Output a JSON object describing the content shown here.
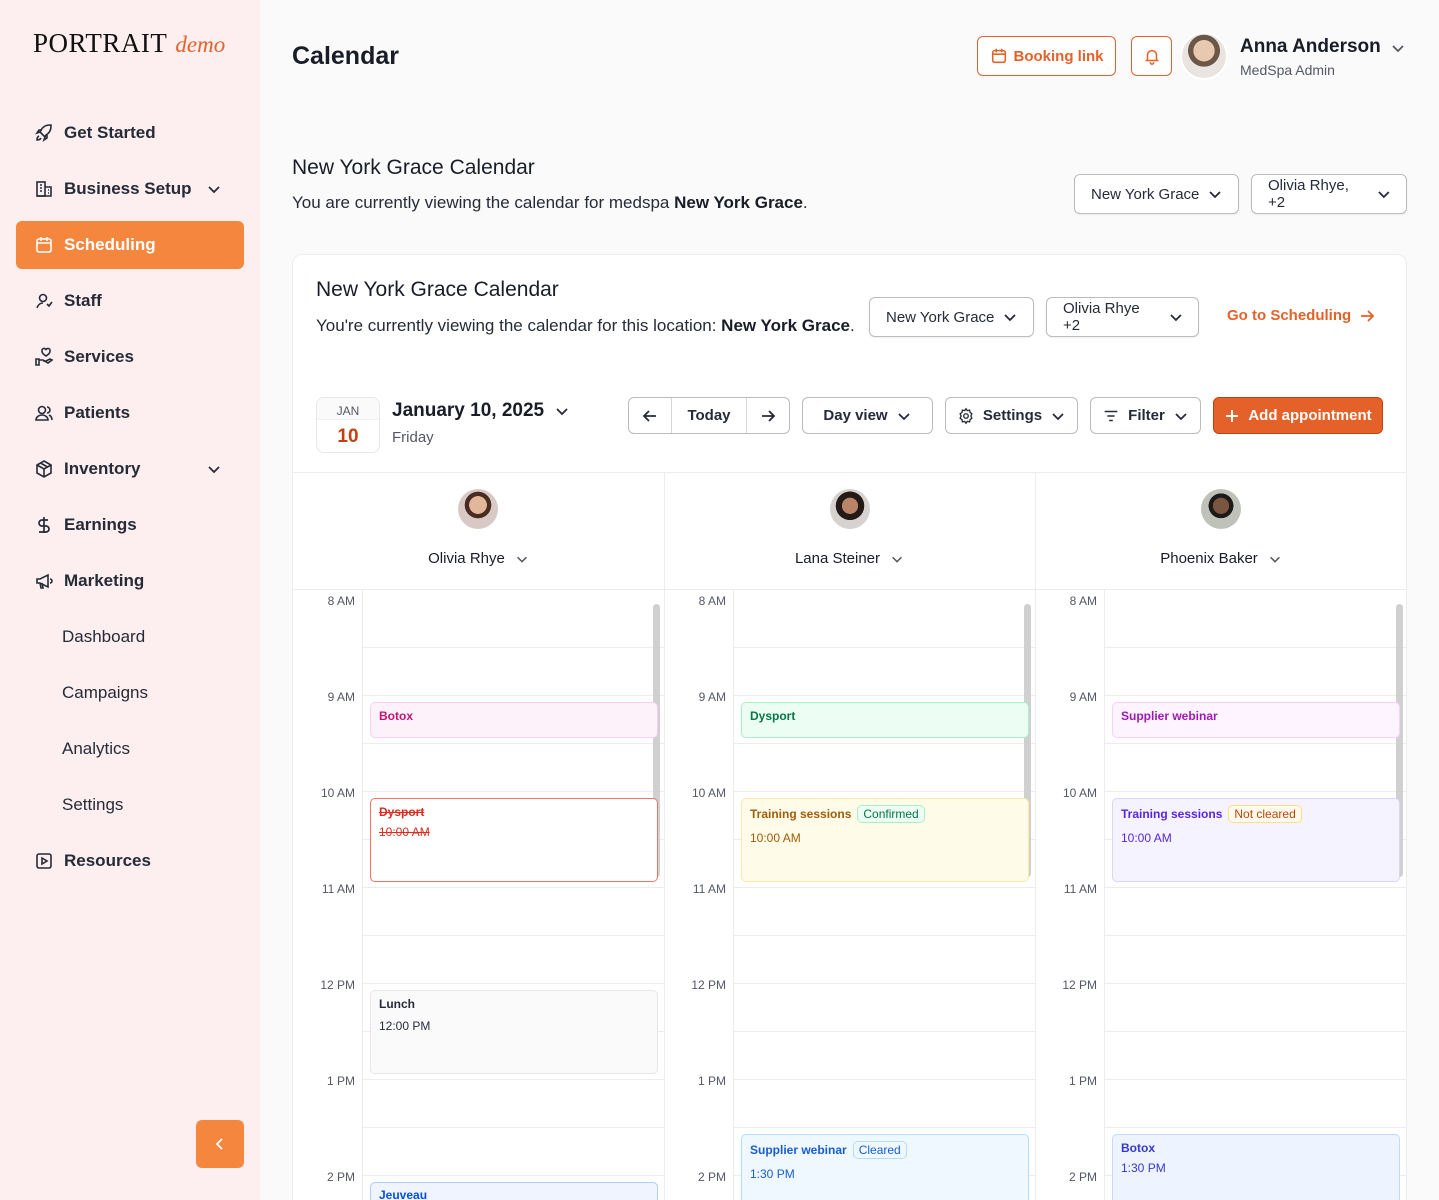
{
  "brand": {
    "name": "PORTRAIT",
    "suffix": "demo"
  },
  "sidebar": {
    "items": [
      {
        "label": "Get Started"
      },
      {
        "label": "Business Setup"
      },
      {
        "label": "Scheduling"
      },
      {
        "label": "Staff"
      },
      {
        "label": "Services"
      },
      {
        "label": "Patients"
      },
      {
        "label": "Inventory"
      },
      {
        "label": "Earnings"
      },
      {
        "label": "Marketing"
      },
      {
        "label": "Dashboard"
      },
      {
        "label": "Campaigns"
      },
      {
        "label": "Analytics"
      },
      {
        "label": "Settings"
      },
      {
        "label": "Resources"
      }
    ]
  },
  "header": {
    "title": "Calendar",
    "booking_link": "Booking link",
    "user_name": "Anna Anderson",
    "user_role": "MedSpa Admin"
  },
  "section": {
    "title": "New York Grace Calendar",
    "desc_prefix": "You are currently viewing the calendar for medspa ",
    "desc_bold": "New York Grace",
    "desc_suffix": ".",
    "location_select": "New York Grace",
    "staff_select": "Olivia Rhye, +2"
  },
  "card": {
    "title": "New York Grace Calendar",
    "desc_prefix": "You're currently viewing the calendar for this location: ",
    "desc_bold": "New York Grace",
    "desc_suffix": ".",
    "location_select": "New York Grace",
    "staff_select": "Olivia Rhye +2",
    "goto": "Go to Scheduling"
  },
  "toolbar": {
    "month": "JAN",
    "day": "10",
    "date": "January 10, 2025",
    "weekday": "Friday",
    "today": "Today",
    "view": "Day view",
    "settings": "Settings",
    "filter": "Filter",
    "add": "Add appointment"
  },
  "times": [
    "8 AM",
    "9 AM",
    "10 AM",
    "11 AM",
    "12 PM",
    "1 PM",
    "2 PM"
  ],
  "staff": [
    {
      "name": "Olivia Rhye"
    },
    {
      "name": "Lana Steiner"
    },
    {
      "name": "Phoenix Baker"
    }
  ],
  "events": {
    "olivia": [
      {
        "title": "Botox"
      },
      {
        "title": "Dysport",
        "time": "10:00 AM"
      },
      {
        "title": "Lunch",
        "time": "12:00 PM"
      },
      {
        "title": "Jeuveau"
      }
    ],
    "lana": [
      {
        "title": "Dysport"
      },
      {
        "title": "Training sessions",
        "tag": "Confirmed",
        "time": "10:00 AM"
      },
      {
        "title": "Supplier webinar",
        "tag": "Cleared",
        "time": "1:30 PM"
      }
    ],
    "phoenix": [
      {
        "title": "Supplier webinar"
      },
      {
        "title": "Training sessions",
        "tag": "Not cleared",
        "time": "10:00 AM"
      },
      {
        "title": "Botox",
        "time": "1:30 PM"
      }
    ]
  },
  "colors": {
    "accent": "#f4863e",
    "brand_orange": "#e4622a",
    "sidebar_bg": "#fdeef0"
  }
}
